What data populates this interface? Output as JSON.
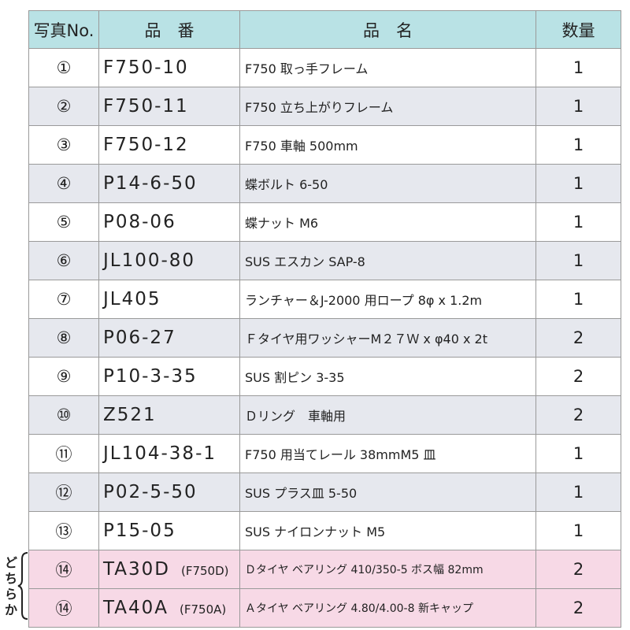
{
  "headers": {
    "photo_no": "写真No.",
    "part_number": "品　番",
    "part_name": "品　名",
    "quantity": "数量"
  },
  "note": {
    "label": "どちらか"
  },
  "rows": [
    {
      "no": "①",
      "code": "F750-10",
      "sub": "",
      "name": "F750 取っ手フレーム",
      "qty": "1"
    },
    {
      "no": "②",
      "code": "F750-11",
      "sub": "",
      "name": "F750 立ち上がりフレーム",
      "qty": "1"
    },
    {
      "no": "③",
      "code": "F750-12",
      "sub": "",
      "name": "F750 車軸 500mm",
      "qty": "1"
    },
    {
      "no": "④",
      "code": "P14-6-50",
      "sub": "",
      "name": "蝶ボルト 6-50",
      "qty": "1"
    },
    {
      "no": "⑤",
      "code": "P08-06",
      "sub": "",
      "name": "蝶ナット M6",
      "qty": "1"
    },
    {
      "no": "⑥",
      "code": "JL100-80",
      "sub": "",
      "name": "SUS エスカン SAP-8",
      "qty": "1"
    },
    {
      "no": "⑦",
      "code": "JL405",
      "sub": "",
      "name": "ランチャー＆J-2000 用ロープ 8φ x 1.2m",
      "qty": "1"
    },
    {
      "no": "⑧",
      "code": "P06-27",
      "sub": "",
      "name": "Ｆタイヤ用ワッシャーM２７Ｗ x φ40 x 2t",
      "qty": "2"
    },
    {
      "no": "⑨",
      "code": "P10-3-35",
      "sub": "",
      "name": "SUS 割ピン 3-35",
      "qty": "2"
    },
    {
      "no": "⑩",
      "code": "Z521",
      "sub": "",
      "name": "Ｄリング　車軸用",
      "qty": "2"
    },
    {
      "no": "⑪",
      "code": "JL104-38-1",
      "sub": "",
      "name": "F750 用当てレール 38mmM5 皿",
      "qty": "1"
    },
    {
      "no": "⑫",
      "code": "P02-5-50",
      "sub": "",
      "name": "SUS プラス皿 5-50",
      "qty": "1"
    },
    {
      "no": "⑬",
      "code": "P15-05",
      "sub": "",
      "name": "SUS ナイロンナット M5",
      "qty": "1"
    },
    {
      "no": "⑭",
      "code": "TA30D",
      "sub": "(F750D)",
      "name": "Ｄタイヤ ベアリング 410/350-5 ボス幅 82mm",
      "qty": "2"
    },
    {
      "no": "⑭",
      "code": "TA40A",
      "sub": "(F750A)",
      "name": "Ａタイヤ ベアリング 4.80/4.00-8 新キャップ",
      "qty": "2"
    }
  ],
  "colors": {
    "header_bg": "#b9e2e5",
    "alt_row_bg": "#e6e8ee",
    "pink_row_bg": "#f7d9e6",
    "border": "#9a9a9a"
  }
}
